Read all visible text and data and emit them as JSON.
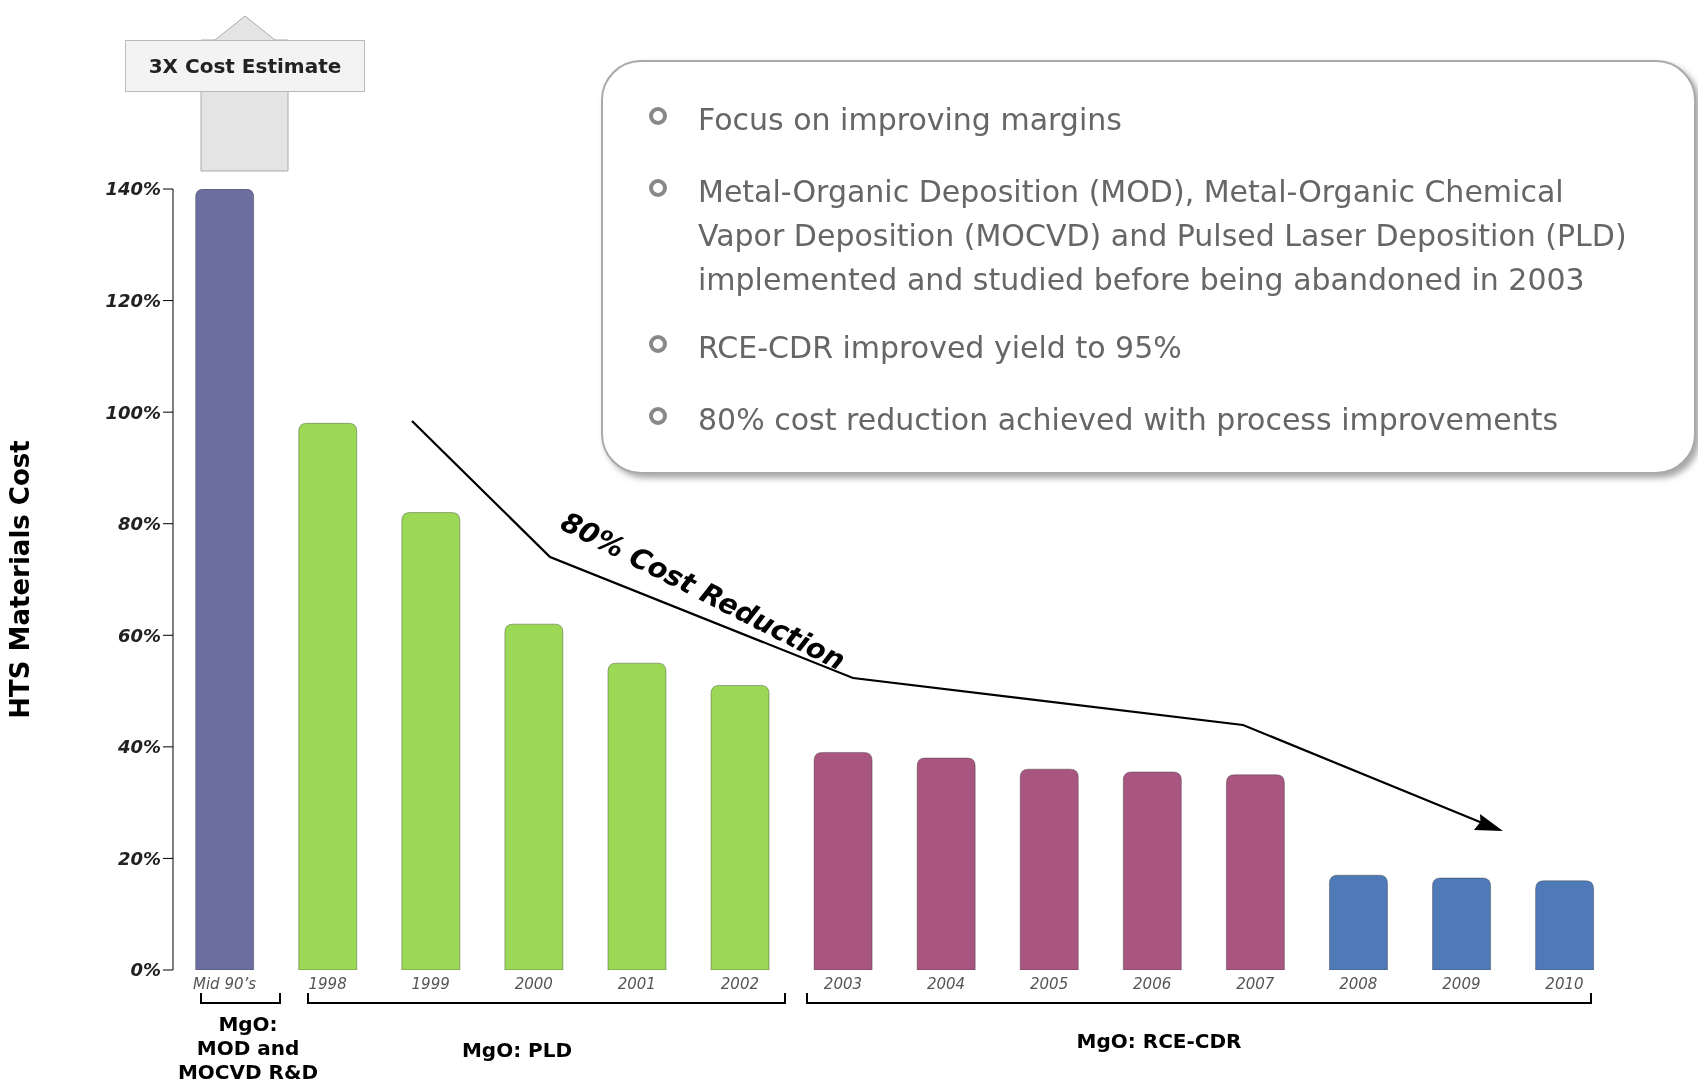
{
  "chart_data": {
    "type": "bar",
    "ylabel": "HTS Materials Cost",
    "categories": [
      "Mid 90’s",
      "1998",
      "1999",
      "2000",
      "2001",
      "2002",
      "2003",
      "2004",
      "2005",
      "2006",
      "2007",
      "2008",
      "2009",
      "2010"
    ],
    "values": [
      140,
      98,
      82,
      62,
      55,
      51,
      39,
      38,
      36,
      35.5,
      35,
      17,
      16.5,
      16
    ],
    "colors": [
      "#6a6fa0",
      "#9bd855",
      "#9bd855",
      "#9bd855",
      "#9bd855",
      "#9bd855",
      "#a85580",
      "#a85580",
      "#a85580",
      "#a85580",
      "#a85580",
      "#4f7ab8",
      "#4f7ab8",
      "#4f7ab8"
    ],
    "ylim": [
      0,
      140
    ],
    "yticks": [
      {
        "value": 0,
        "label": "0%"
      },
      {
        "value": 20,
        "label": "20%"
      },
      {
        "value": 40,
        "label": "40%"
      },
      {
        "value": 60,
        "label": "60%"
      },
      {
        "value": 80,
        "label": "80%"
      },
      {
        "value": 100,
        "label": "100%"
      },
      {
        "value": 120,
        "label": "120%"
      },
      {
        "value": 140,
        "label": "140%"
      }
    ],
    "annotations": [
      "3X Cost Estimate",
      "Focus on improving margins",
      "Metal-Organic Deposition (MOD), Metal-Organic Chemical Vapor Deposition (MOCVD) and Pulsed Laser Deposition (PLD) implemented and studied before being abandoned in 2003",
      "RCE-CDR improved yield to 95%",
      "80% cost reduction achieved with process improvements",
      "80% Cost Reduction",
      "MgO:\nMOD and\nMOCVD R&D",
      "MgO: PLD",
      "MgO: RCE-CDR"
    ]
  }
}
